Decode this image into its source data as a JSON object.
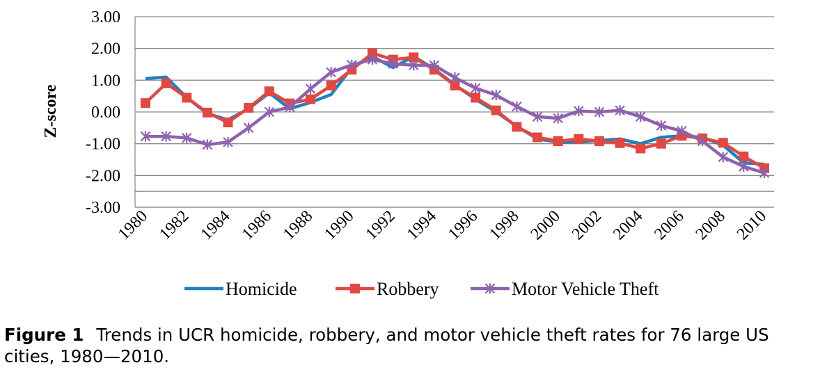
{
  "chart_data": {
    "type": "line",
    "title": "",
    "xlabel": "",
    "ylabel": "Z-score",
    "ylim": [
      -3,
      3
    ],
    "yticks": [
      "3.00",
      "2.00",
      "1.00",
      "0.00",
      "-1.00",
      "-2.00",
      "-3.00"
    ],
    "x": [
      1980,
      1981,
      1982,
      1983,
      1984,
      1985,
      1986,
      1987,
      1988,
      1989,
      1990,
      1991,
      1992,
      1993,
      1994,
      1995,
      1996,
      1997,
      1998,
      1999,
      2000,
      2001,
      2002,
      2003,
      2004,
      2005,
      2006,
      2007,
      2008,
      2009,
      2010
    ],
    "xtick_labels": [
      "1980",
      "1982",
      "1984",
      "1986",
      "1988",
      "1990",
      "1992",
      "1994",
      "1996",
      "1998",
      "2000",
      "2002",
      "2004",
      "2006",
      "2008",
      "2010"
    ],
    "grid": "horizontal",
    "legend_position": "bottom",
    "series": [
      {
        "name": "Homicide",
        "color": "#1f7fbf",
        "marker": "none",
        "values": [
          1.05,
          1.1,
          0.45,
          -0.05,
          -0.25,
          0.1,
          0.6,
          0.1,
          0.3,
          0.55,
          1.4,
          1.75,
          1.4,
          1.75,
          1.35,
          0.85,
          0.4,
          0.0,
          -0.45,
          -0.85,
          -0.95,
          -0.95,
          -0.9,
          -0.85,
          -1.0,
          -0.8,
          -0.75,
          -0.8,
          -1.05,
          -1.6,
          -1.65
        ]
      },
      {
        "name": "Robbery",
        "color": "#e04841",
        "marker": "square",
        "values": [
          0.28,
          0.9,
          0.45,
          -0.02,
          -0.33,
          0.13,
          0.65,
          0.27,
          0.4,
          0.83,
          1.33,
          1.85,
          1.65,
          1.72,
          1.33,
          0.83,
          0.45,
          0.05,
          -0.47,
          -0.8,
          -0.92,
          -0.85,
          -0.92,
          -0.98,
          -1.15,
          -1.0,
          -0.75,
          -0.83,
          -0.97,
          -1.4,
          -1.77
        ]
      },
      {
        "name": "Motor Vehicle Theft",
        "color": "#8e62ad",
        "marker": "star",
        "values": [
          -0.77,
          -0.77,
          -0.82,
          -1.03,
          -0.95,
          -0.5,
          0.0,
          0.15,
          0.73,
          1.25,
          1.48,
          1.65,
          1.52,
          1.47,
          1.47,
          1.08,
          0.75,
          0.53,
          0.17,
          -0.15,
          -0.2,
          0.03,
          0.0,
          0.05,
          -0.15,
          -0.43,
          -0.6,
          -0.92,
          -1.42,
          -1.72,
          -1.92
        ]
      }
    ]
  },
  "caption": {
    "figure_number": "Figure 1",
    "text": "Trends in UCR homicide, robbery, and motor vehicle theft rates for 76 large US cities, 1980—2010."
  }
}
